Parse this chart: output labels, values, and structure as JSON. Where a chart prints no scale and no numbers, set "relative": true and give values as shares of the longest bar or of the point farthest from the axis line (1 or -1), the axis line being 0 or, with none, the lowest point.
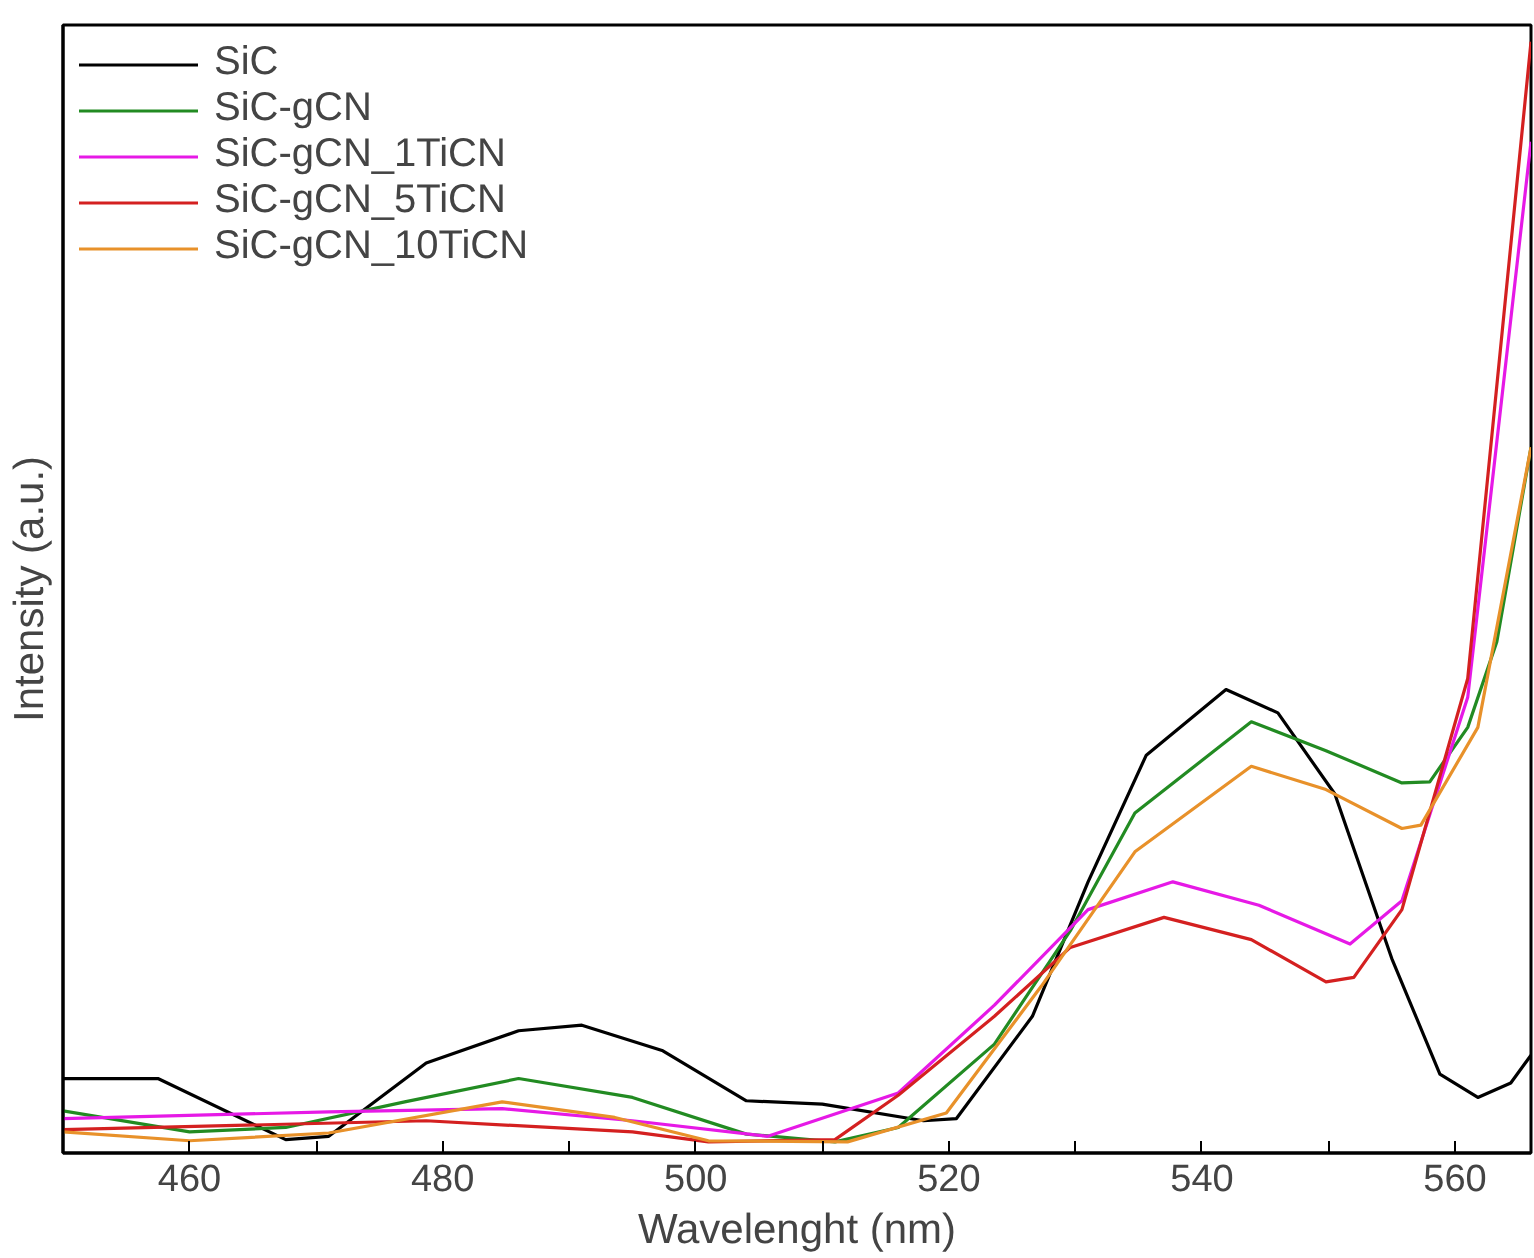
{
  "chart_data": {
    "type": "line",
    "xlabel": "Wavelenght (nm)",
    "ylabel": "Intensity (a.u.)",
    "relative": true,
    "xlim": [
      450,
      566
    ],
    "xticks": [
      460,
      {
        "value": 470,
        "label": null
      },
      480,
      {
        "value": 490,
        "label": null
      },
      500,
      {
        "value": 510,
        "label": null
      },
      520,
      {
        "value": 530,
        "label": null
      },
      540,
      {
        "value": 550,
        "label": null
      },
      560
    ],
    "tick_labels": "x",
    "grid": false,
    "legend": "top left",
    "marker": "none",
    "line_style": "solid",
    "series": [
      {
        "name": "SiC",
        "color": "#000000",
        "x": [
          450,
          457.5,
          467.6,
          471,
          478.7,
          486,
          491,
          497.4,
          504,
          510,
          518,
          520.6,
          526.6,
          531,
          535.6,
          541.9,
          546,
          550.5,
          555,
          558.8,
          561.8,
          564.4,
          566
        ],
        "values": [
          0.067,
          0.067,
          0.012,
          0.015,
          0.081,
          0.11,
          0.115,
          0.092,
          0.047,
          0.044,
          0.029,
          0.031,
          0.123,
          0.244,
          0.358,
          0.417,
          0.396,
          0.323,
          0.175,
          0.071,
          0.05,
          0.063,
          0.088
        ]
      },
      {
        "name": "SiC-gCN",
        "color": "#228b22",
        "x": [
          450,
          460,
          467.6,
          477,
          486,
          495,
          504,
          511,
          516,
          523.6,
          529.6,
          534.7,
          543.9,
          549.8,
          555.8,
          558,
          561,
          563.3,
          566
        ],
        "values": [
          0.038,
          0.019,
          0.023,
          0.046,
          0.067,
          0.05,
          0.017,
          0.01,
          0.023,
          0.098,
          0.2,
          0.306,
          0.388,
          0.362,
          0.333,
          0.334,
          0.383,
          0.46,
          0.635
        ]
      },
      {
        "name": "SiC-gCN_1TiCN",
        "color": "#e619e6",
        "x": [
          450,
          471,
          484.7,
          495,
          505.7,
          516,
          523.6,
          531,
          537.7,
          544.5,
          551.7,
          555.8,
          561,
          566
        ],
        "values": [
          0.031,
          0.037,
          0.04,
          0.029,
          0.015,
          0.054,
          0.133,
          0.219,
          0.244,
          0.223,
          0.188,
          0.227,
          0.41,
          0.91
        ]
      },
      {
        "name": "SiC-gCN_5TiCN",
        "color": "#d42020",
        "x": [
          450,
          478.7,
          495,
          501,
          511,
          516,
          523.6,
          529.6,
          537,
          543.9,
          549.8,
          552,
          555.8,
          561,
          566
        ],
        "values": [
          0.021,
          0.029,
          0.019,
          0.01,
          0.012,
          0.052,
          0.123,
          0.185,
          0.212,
          0.192,
          0.154,
          0.158,
          0.219,
          0.427,
          1.0
        ]
      },
      {
        "name": "SiC-gCN_10TiCN",
        "color": "#e8912a",
        "x": [
          450,
          460,
          471,
          484.7,
          493.6,
          501,
          512,
          519.8,
          527.3,
          534.7,
          543.9,
          549.8,
          555.8,
          557.3,
          561.8,
          566
        ],
        "values": [
          0.019,
          0.011,
          0.018,
          0.046,
          0.032,
          0.011,
          0.01,
          0.036,
          0.15,
          0.271,
          0.348,
          0.327,
          0.292,
          0.295,
          0.383,
          0.635
        ]
      }
    ]
  }
}
